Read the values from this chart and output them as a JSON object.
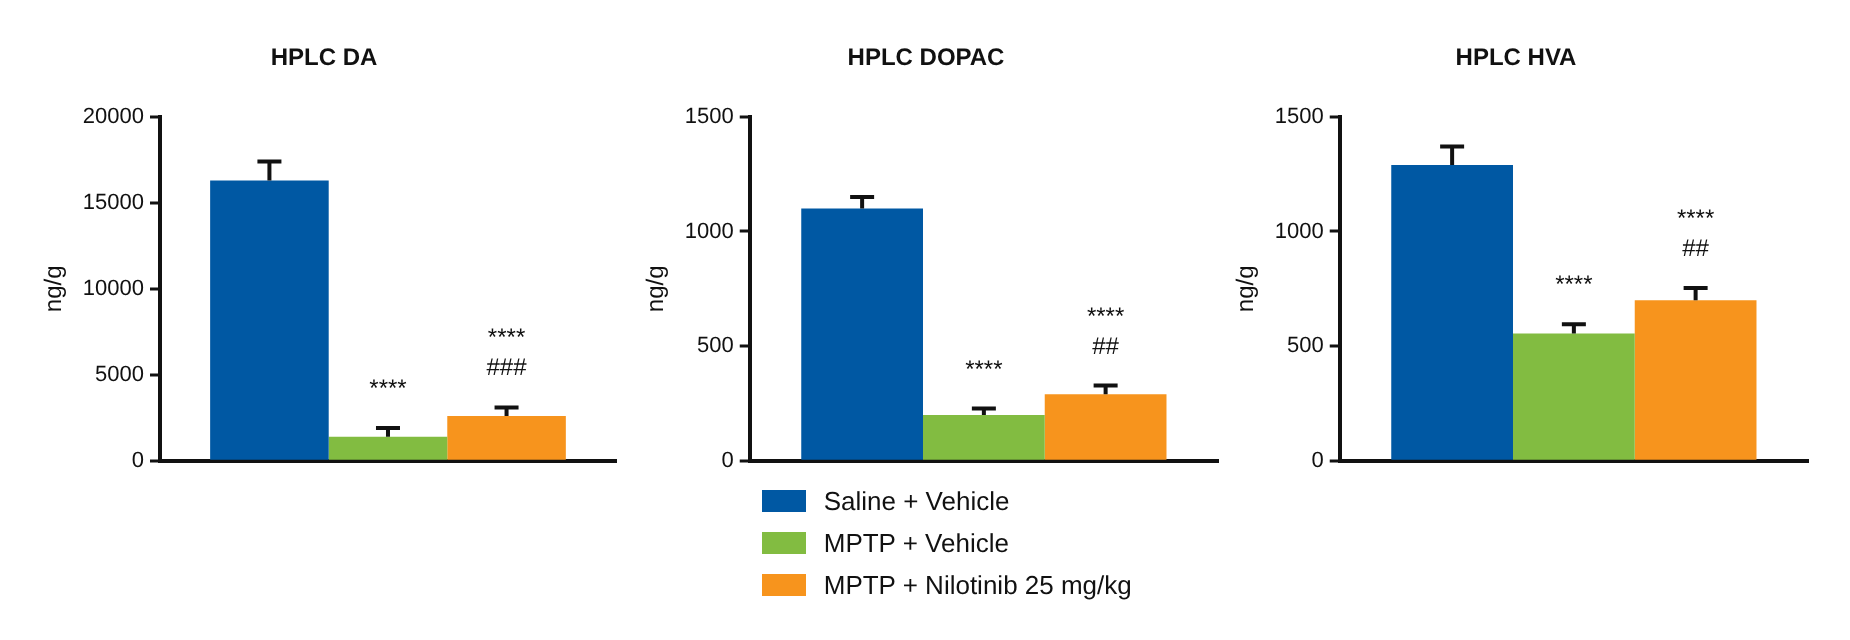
{
  "chart_data": [
    {
      "type": "bar",
      "title": "HPLC DA",
      "ylabel": "ng/g",
      "categories": [
        null
      ],
      "ylim": [
        0,
        20000
      ],
      "yticks": [
        0,
        5000,
        10000,
        15000,
        20000
      ],
      "grid": false,
      "legend": false,
      "tick_labels": "y",
      "series": [
        {
          "color": "#0058a3",
          "values": [
            16300
          ],
          "errors": [
            [
              16300,
              17400
            ]
          ]
        },
        {
          "color": "#82bc41",
          "values": [
            1400
          ],
          "errors": [
            [
              1400,
              1900
            ]
          ]
        },
        {
          "color": "#f7941d",
          "values": [
            2600
          ],
          "errors": [
            [
              2600,
              3100
            ]
          ]
        }
      ],
      "annotations": [
        "****",
        "****\n###"
      ]
    },
    {
      "type": "bar",
      "title": "HPLC DOPAC",
      "ylabel": "ng/g",
      "categories": [
        null
      ],
      "ylim": [
        0,
        1500
      ],
      "yticks": [
        0,
        500,
        1000,
        1500
      ],
      "grid": false,
      "legend": "bottom",
      "tick_labels": "y",
      "series": [
        {
          "name": "Saline + Vehicle",
          "color": "#0058a3",
          "values": [
            1100
          ],
          "errors": [
            [
              1100,
              1150
            ]
          ]
        },
        {
          "name": "MPTP + Vehicle",
          "color": "#82bc41",
          "values": [
            200
          ],
          "errors": [
            [
              200,
              228
            ]
          ]
        },
        {
          "name": "MPTP + Nilotinib 25 mg/kg",
          "color": "#f7941d",
          "values": [
            290
          ],
          "errors": [
            [
              290,
              328
            ]
          ]
        }
      ],
      "annotations": [
        "****",
        "****\n##"
      ]
    },
    {
      "type": "bar",
      "title": "HPLC HVA",
      "ylabel": "ng/g",
      "categories": [
        null
      ],
      "ylim": [
        0,
        1500
      ],
      "yticks": [
        0,
        500,
        1000,
        1500
      ],
      "grid": false,
      "legend": false,
      "tick_labels": "y",
      "series": [
        {
          "color": "#0058a3",
          "values": [
            1290
          ],
          "errors": [
            [
              1290,
              1370
            ]
          ]
        },
        {
          "color": "#82bc41",
          "values": [
            555
          ],
          "errors": [
            [
              555,
              595
            ]
          ]
        },
        {
          "color": "#f7941d",
          "values": [
            700
          ],
          "errors": [
            [
              700,
              753
            ]
          ]
        }
      ],
      "annotations": [
        "****",
        "****\n##"
      ]
    }
  ]
}
